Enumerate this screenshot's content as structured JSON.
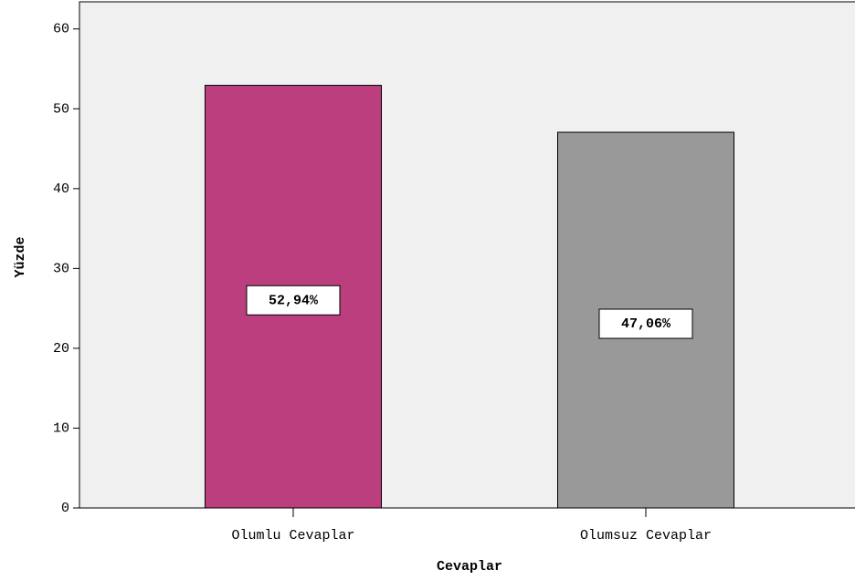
{
  "chart_data": {
    "type": "bar",
    "categories": [
      "Olumlu Cevaplar",
      "Olumsuz Cevaplar"
    ],
    "values": [
      52.94,
      47.06
    ],
    "value_labels": [
      "52,94%",
      "47,06%"
    ],
    "colors": [
      "#bb3f7e",
      "#999999"
    ],
    "x_label": "Cevaplar",
    "y_label": "Yüzde",
    "ylim": [
      0,
      63.4
    ],
    "yticks": [
      0,
      10,
      20,
      30,
      40,
      50,
      60
    ],
    "grid": false
  }
}
